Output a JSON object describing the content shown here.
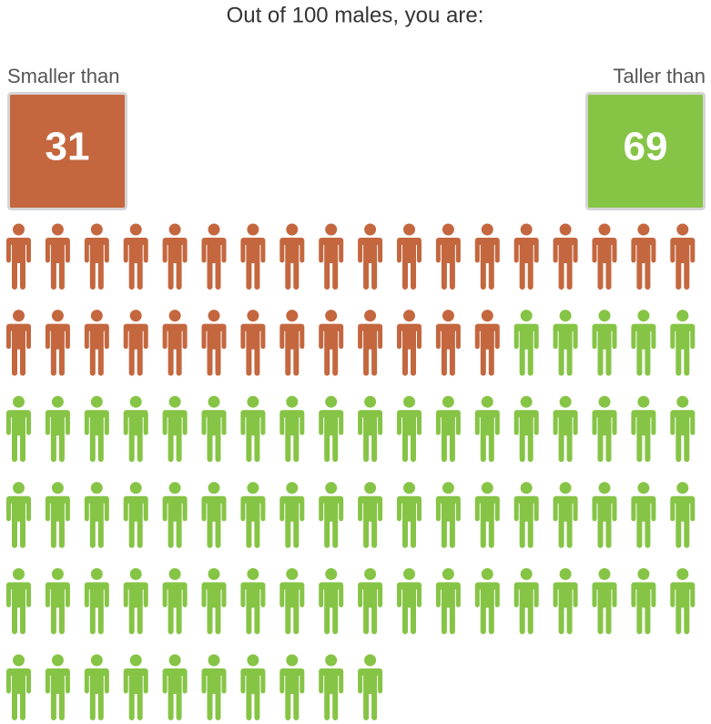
{
  "chart_data": {
    "type": "pictograph",
    "title": "Out of 100 males, you are:",
    "series": [
      {
        "name": "Smaller than",
        "color": "#c4673f",
        "values": [
          31
        ]
      },
      {
        "name": "Taller than",
        "color": "#86c446",
        "values": [
          69
        ]
      }
    ]
  }
}
